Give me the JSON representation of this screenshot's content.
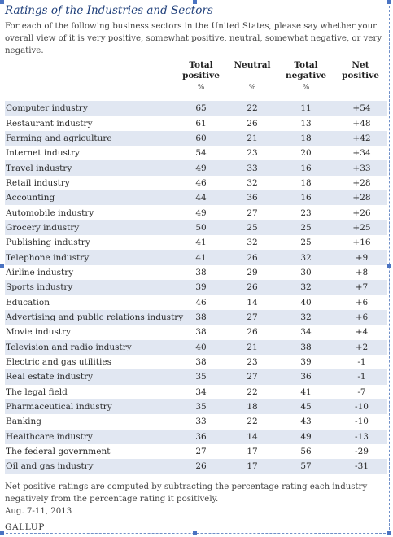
{
  "chart_data": {
    "type": "table",
    "title": "Ratings of the Industries and Sectors",
    "subtitle": "For each of the following business sectors in the United States, please say whether your overall view of it is very positive, somewhat positive, neutral, somewhat negative, or very negative.",
    "columns": [
      {
        "line1": "Total",
        "line2": "positive",
        "unit": "%"
      },
      {
        "line1": "",
        "line2": "Neutral",
        "unit": "%"
      },
      {
        "line1": "Total",
        "line2": "negative",
        "unit": "%"
      },
      {
        "line1": "Net",
        "line2": "positive",
        "unit": ""
      }
    ],
    "rows": [
      {
        "label": "Computer industry",
        "positive": "65",
        "neutral": "22",
        "negative": "11",
        "net": "+54"
      },
      {
        "label": "Restaurant industry",
        "positive": "61",
        "neutral": "26",
        "negative": "13",
        "net": "+48"
      },
      {
        "label": "Farming and agriculture",
        "positive": "60",
        "neutral": "21",
        "negative": "18",
        "net": "+42"
      },
      {
        "label": "Internet industry",
        "positive": "54",
        "neutral": "23",
        "negative": "20",
        "net": "+34"
      },
      {
        "label": "Travel industry",
        "positive": "49",
        "neutral": "33",
        "negative": "16",
        "net": "+33"
      },
      {
        "label": "Retail industry",
        "positive": "46",
        "neutral": "32",
        "negative": "18",
        "net": "+28"
      },
      {
        "label": "Accounting",
        "positive": "44",
        "neutral": "36",
        "negative": "16",
        "net": "+28"
      },
      {
        "label": "Automobile industry",
        "positive": "49",
        "neutral": "27",
        "negative": "23",
        "net": "+26"
      },
      {
        "label": "Grocery industry",
        "positive": "50",
        "neutral": "25",
        "negative": "25",
        "net": "+25"
      },
      {
        "label": "Publishing industry",
        "positive": "41",
        "neutral": "32",
        "negative": "25",
        "net": "+16"
      },
      {
        "label": "Telephone industry",
        "positive": "41",
        "neutral": "26",
        "negative": "32",
        "net": "+9"
      },
      {
        "label": "Airline industry",
        "positive": "38",
        "neutral": "29",
        "negative": "30",
        "net": "+8"
      },
      {
        "label": "Sports industry",
        "positive": "39",
        "neutral": "26",
        "negative": "32",
        "net": "+7"
      },
      {
        "label": "Education",
        "positive": "46",
        "neutral": "14",
        "negative": "40",
        "net": "+6"
      },
      {
        "label": "Advertising and public relations industry",
        "positive": "38",
        "neutral": "27",
        "negative": "32",
        "net": "+6"
      },
      {
        "label": "Movie industry",
        "positive": "38",
        "neutral": "26",
        "negative": "34",
        "net": "+4"
      },
      {
        "label": "Television and radio industry",
        "positive": "40",
        "neutral": "21",
        "negative": "38",
        "net": "+2"
      },
      {
        "label": "Electric and gas utilities",
        "positive": "38",
        "neutral": "23",
        "negative": "39",
        "net": "-1"
      },
      {
        "label": "Real estate industry",
        "positive": "35",
        "neutral": "27",
        "negative": "36",
        "net": "-1"
      },
      {
        "label": "The legal field",
        "positive": "34",
        "neutral": "22",
        "negative": "41",
        "net": "-7"
      },
      {
        "label": "Pharmaceutical industry",
        "positive": "35",
        "neutral": "18",
        "negative": "45",
        "net": "-10"
      },
      {
        "label": "Banking",
        "positive": "33",
        "neutral": "22",
        "negative": "43",
        "net": "-10"
      },
      {
        "label": "Healthcare industry",
        "positive": "36",
        "neutral": "14",
        "negative": "49",
        "net": "-13"
      },
      {
        "label": "The federal government",
        "positive": "27",
        "neutral": "17",
        "negative": "56",
        "net": "-29"
      },
      {
        "label": "Oil and gas industry",
        "positive": "26",
        "neutral": "17",
        "negative": "57",
        "net": "-31"
      }
    ],
    "note": "Net positive ratings are computed by subtracting the percentage rating each industry negatively from the percentage rating it positively.",
    "date": "Aug. 7-11, 2013",
    "source": "GALLUP"
  },
  "colors": {
    "title": "#1f3f7a",
    "row_stripe": "#e1e7f2",
    "selection_border": "#4a73c2"
  }
}
